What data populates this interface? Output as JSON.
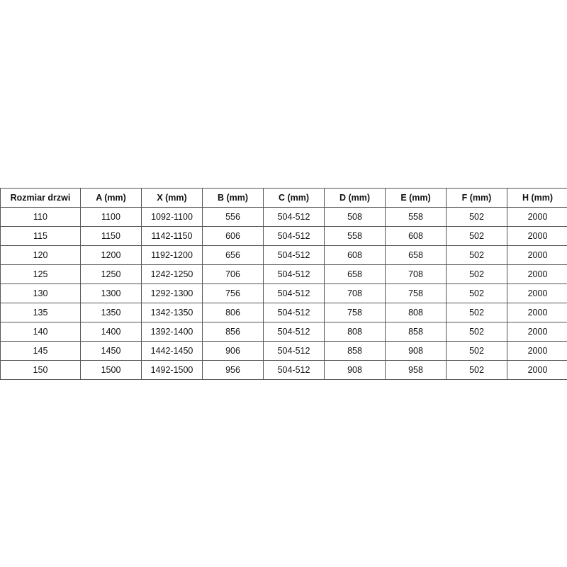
{
  "table": {
    "headers": [
      "Rozmiar drzwi",
      "A (mm)",
      "X (mm)",
      "B (mm)",
      "C (mm)",
      "D (mm)",
      "E (mm)",
      "F (mm)",
      "H (mm)"
    ],
    "rows": [
      [
        "110",
        "1100",
        "1092-1100",
        "556",
        "504-512",
        "508",
        "558",
        "502",
        "2000"
      ],
      [
        "115",
        "1150",
        "1142-1150",
        "606",
        "504-512",
        "558",
        "608",
        "502",
        "2000"
      ],
      [
        "120",
        "1200",
        "1192-1200",
        "656",
        "504-512",
        "608",
        "658",
        "502",
        "2000"
      ],
      [
        "125",
        "1250",
        "1242-1250",
        "706",
        "504-512",
        "658",
        "708",
        "502",
        "2000"
      ],
      [
        "130",
        "1300",
        "1292-1300",
        "756",
        "504-512",
        "708",
        "758",
        "502",
        "2000"
      ],
      [
        "135",
        "1350",
        "1342-1350",
        "806",
        "504-512",
        "758",
        "808",
        "502",
        "2000"
      ],
      [
        "140",
        "1400",
        "1392-1400",
        "856",
        "504-512",
        "808",
        "858",
        "502",
        "2000"
      ],
      [
        "145",
        "1450",
        "1442-1450",
        "906",
        "504-512",
        "858",
        "908",
        "502",
        "2000"
      ],
      [
        "150",
        "1500",
        "1492-1500",
        "956",
        "504-512",
        "908",
        "958",
        "502",
        "2000"
      ]
    ]
  }
}
